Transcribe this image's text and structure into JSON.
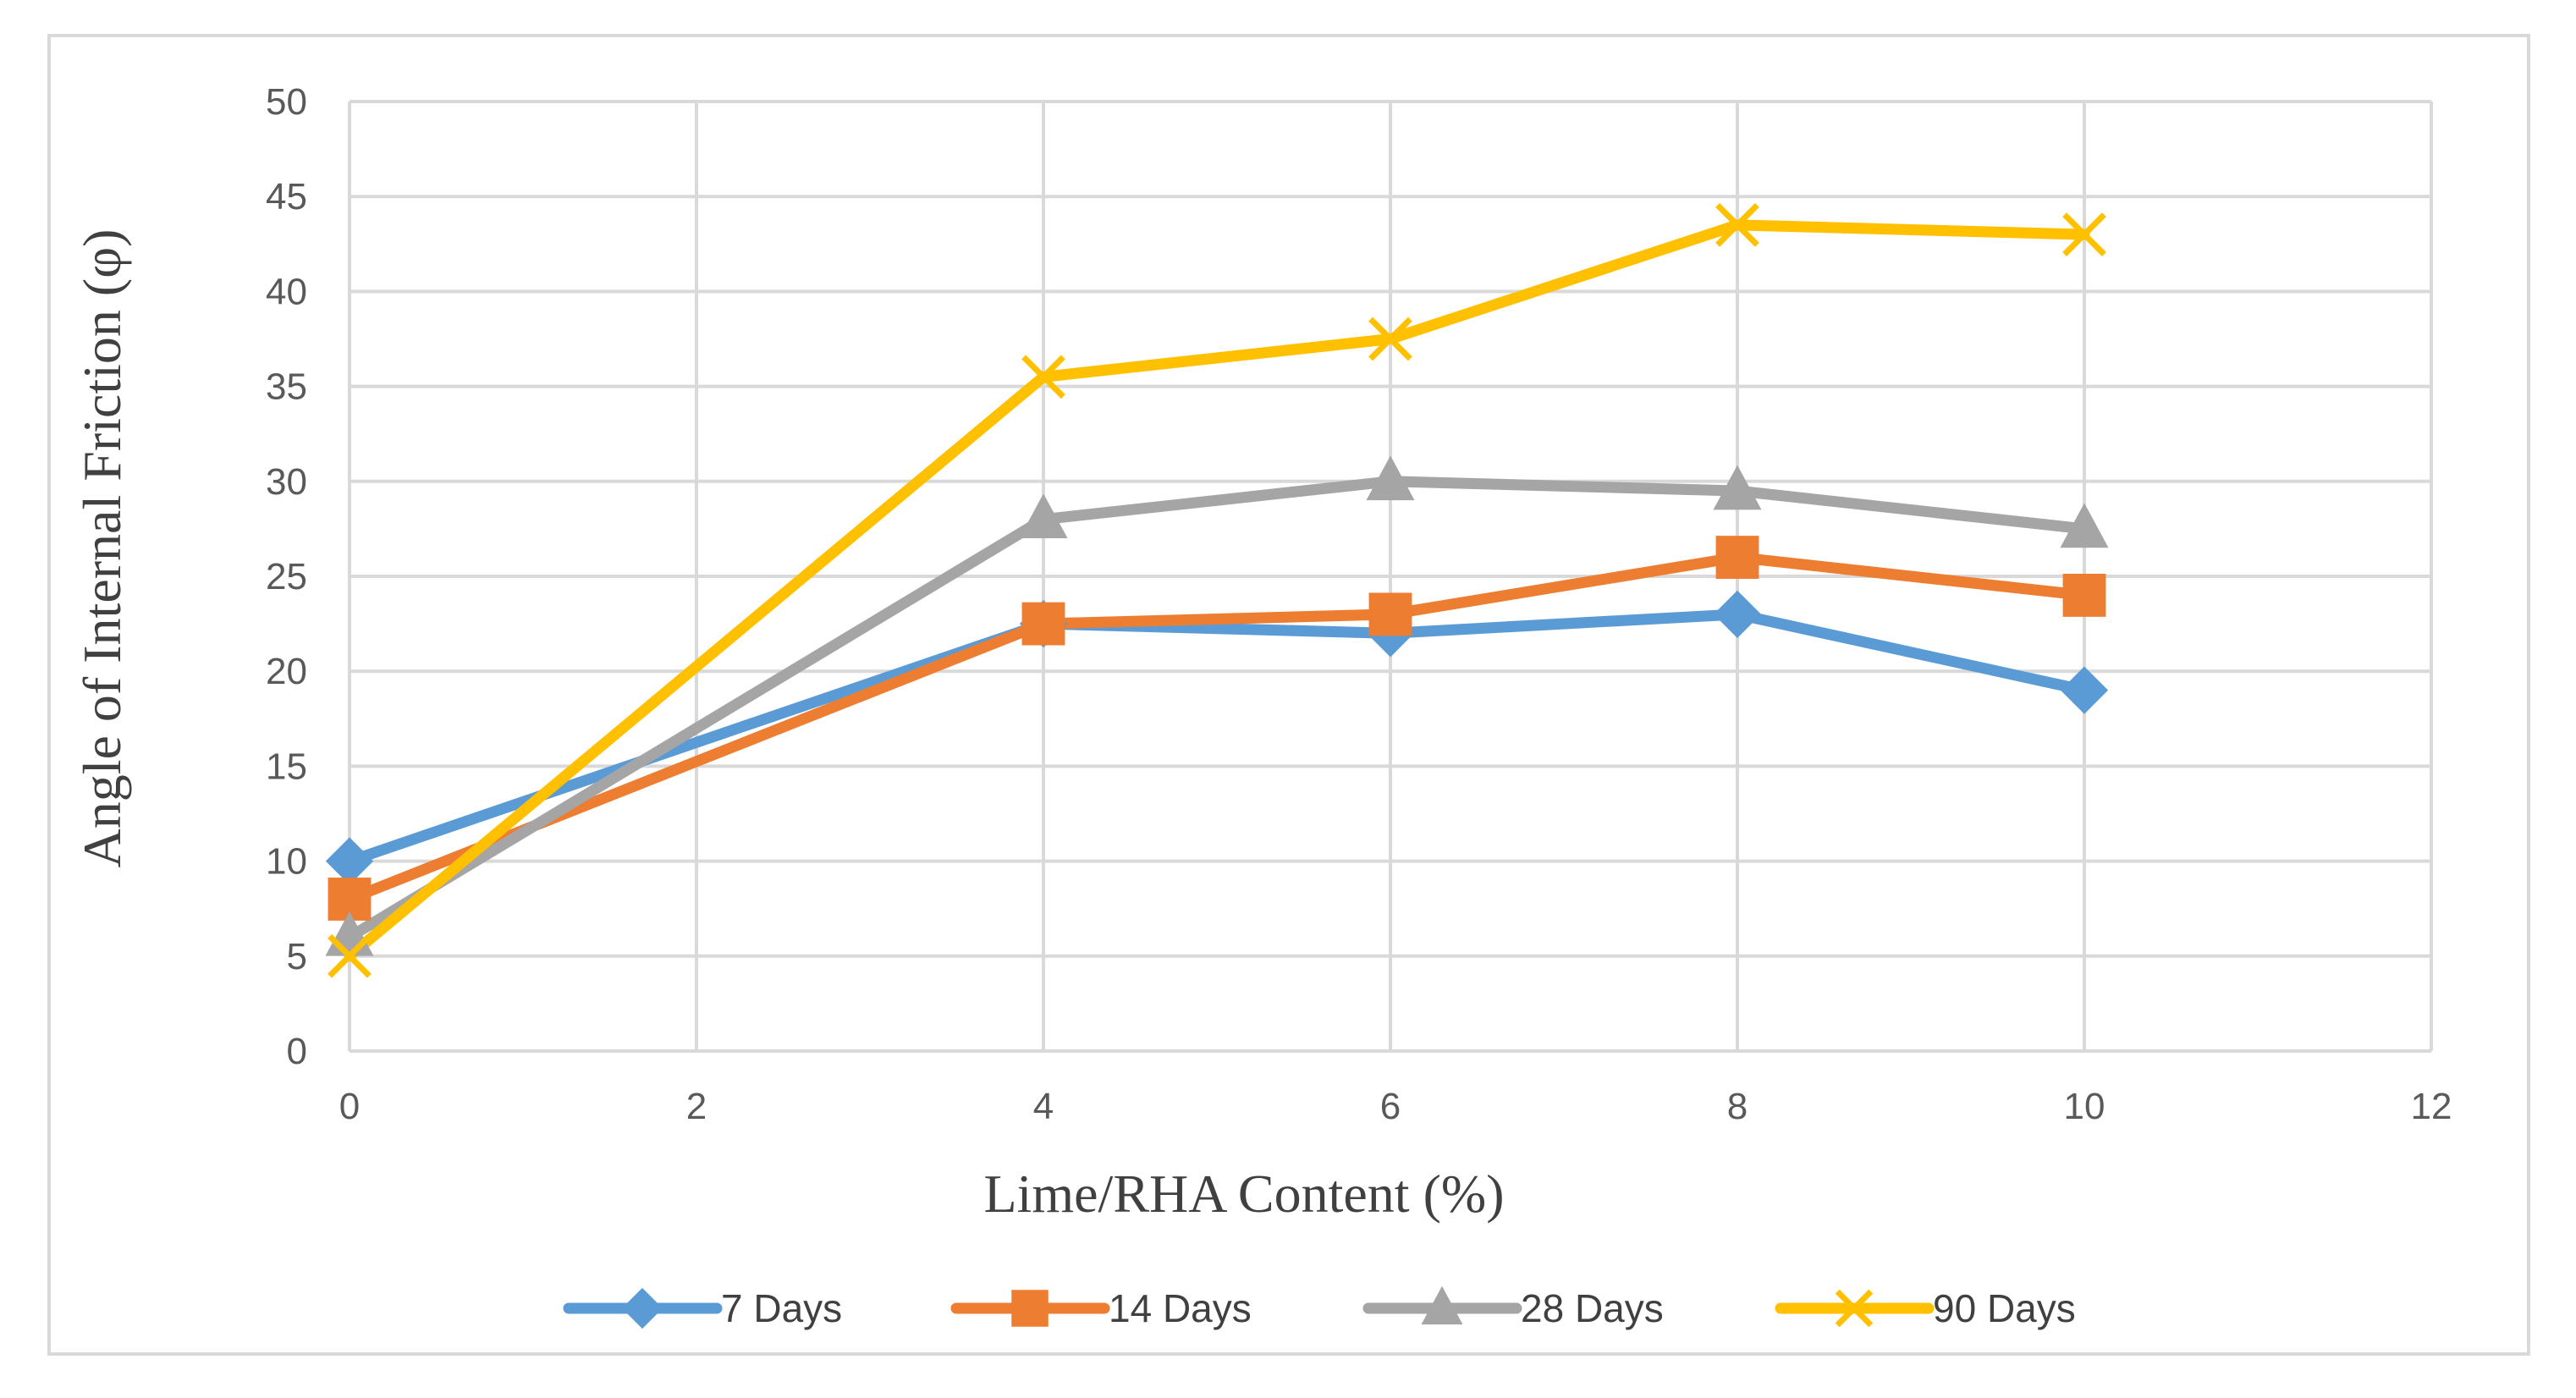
{
  "chart_data": {
    "type": "line",
    "title": "",
    "xlabel": "Lime/RHA Content (%)",
    "ylabel": "Angle of Internal Friction (φ)",
    "xlim": [
      0,
      12
    ],
    "ylim": [
      0,
      50
    ],
    "x_ticks": [
      0,
      2,
      4,
      6,
      8,
      10,
      12
    ],
    "y_ticks": [
      0,
      5,
      10,
      15,
      20,
      25,
      30,
      35,
      40,
      45,
      50
    ],
    "grid": true,
    "legend_position": "bottom",
    "x": [
      0,
      2,
      4,
      6,
      8,
      10
    ],
    "series": [
      {
        "name": "7 Days",
        "color": "#5B9BD5",
        "marker": "diamond",
        "x": [
          0,
          4,
          6,
          8,
          10
        ],
        "values": [
          10,
          22.5,
          22,
          23,
          19
        ]
      },
      {
        "name": "14 Days",
        "color": "#ED7D31",
        "marker": "square",
        "x": [
          0,
          4,
          6,
          8,
          10
        ],
        "values": [
          8,
          22.5,
          23,
          26,
          24
        ]
      },
      {
        "name": "28 Days",
        "color": "#A5A5A5",
        "marker": "triangle",
        "x": [
          0,
          4,
          6,
          8,
          10
        ],
        "values": [
          6,
          28,
          30,
          29.5,
          27.5
        ]
      },
      {
        "name": "90 Days",
        "color": "#FFC000",
        "marker": "x",
        "x": [
          0,
          4,
          6,
          8,
          10
        ],
        "values": [
          5,
          35.5,
          37.5,
          43.5,
          43
        ]
      }
    ]
  }
}
